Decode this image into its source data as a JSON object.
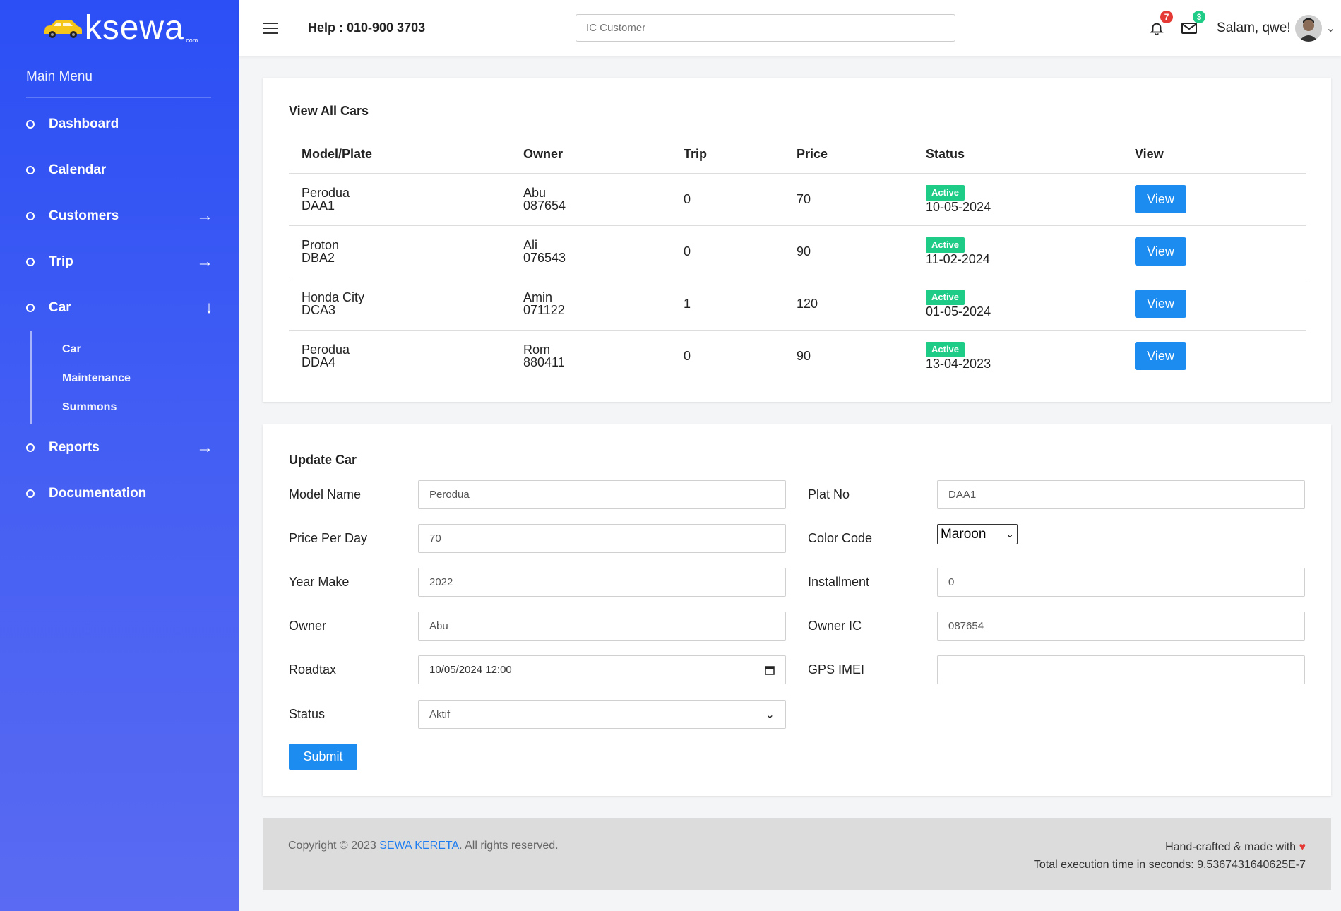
{
  "brand": {
    "name": "ksewa",
    "suffix": ".com"
  },
  "sidebar": {
    "title": "Main Menu",
    "items": [
      {
        "label": "Dashboard",
        "arrow": ""
      },
      {
        "label": "Calendar",
        "arrow": ""
      },
      {
        "label": "Customers",
        "arrow": "→"
      },
      {
        "label": "Trip",
        "arrow": "→"
      },
      {
        "label": "Car",
        "arrow": "↓"
      },
      {
        "label": "Reports",
        "arrow": "→"
      },
      {
        "label": "Documentation",
        "arrow": ""
      }
    ],
    "car_sub": [
      "Car",
      "Maintenance",
      "Summons"
    ]
  },
  "topbar": {
    "help": "Help : 010-900 3703",
    "search_placeholder": "IC Customer",
    "notifications": "7",
    "messages": "3",
    "greeting": "Salam, qwe!"
  },
  "cars_table": {
    "title": "View All Cars",
    "headers": [
      "Model/Plate",
      "Owner",
      "Trip",
      "Price",
      "Status",
      "View"
    ],
    "rows": [
      {
        "model": "Perodua",
        "plate": "DAA1",
        "owner": "Abu",
        "owner_ic": "087654",
        "trip": "0",
        "price": "70",
        "status": "Active",
        "date": "10-05-2024",
        "view": "View"
      },
      {
        "model": "Proton",
        "plate": "DBA2",
        "owner": "Ali",
        "owner_ic": "076543",
        "trip": "0",
        "price": "90",
        "status": "Active",
        "date": "11-02-2024",
        "view": "View"
      },
      {
        "model": "Honda City",
        "plate": "DCA3",
        "owner": "Amin",
        "owner_ic": "071122",
        "trip": "1",
        "price": "120",
        "status": "Active",
        "date": "01-05-2024",
        "view": "View"
      },
      {
        "model": "Perodua",
        "plate": "DDA4",
        "owner": "Rom",
        "owner_ic": "880411",
        "trip": "0",
        "price": "90",
        "status": "Active",
        "date": "13-04-2023",
        "view": "View"
      }
    ]
  },
  "update_form": {
    "title": "Update Car",
    "model_name": {
      "label": "Model Name",
      "value": "Perodua"
    },
    "plat_no": {
      "label": "Plat No",
      "value": "DAA1"
    },
    "price_per_day": {
      "label": "Price Per Day",
      "value": "70"
    },
    "color_code": {
      "label": "Color Code",
      "value": "Maroon"
    },
    "year_make": {
      "label": "Year Make",
      "value": "2022"
    },
    "installment": {
      "label": "Installment",
      "value": "0"
    },
    "owner": {
      "label": "Owner",
      "value": "Abu"
    },
    "owner_ic": {
      "label": "Owner IC",
      "value": "087654"
    },
    "roadtax": {
      "label": "Roadtax",
      "value": "10/05/2024 12:00"
    },
    "gps_imei": {
      "label": "GPS IMEI",
      "value": ""
    },
    "status": {
      "label": "Status",
      "value": "Aktif"
    },
    "submit": "Submit"
  },
  "footer": {
    "copyright_prefix": "Copyright © 2023 ",
    "copyright_link": "SEWA KERETA",
    "copyright_suffix": ". All rights reserved.",
    "handcrafted": "Hand-crafted & made with",
    "exec_time": "Total execution time in seconds: 9.5367431640625E-7"
  },
  "colors": {
    "sidebar": "#2b4ff5",
    "primary_button": "#1d8cf0",
    "active_badge": "#1ecc87",
    "notification_badge": "#e53935",
    "message_badge": "#1ecc87"
  }
}
